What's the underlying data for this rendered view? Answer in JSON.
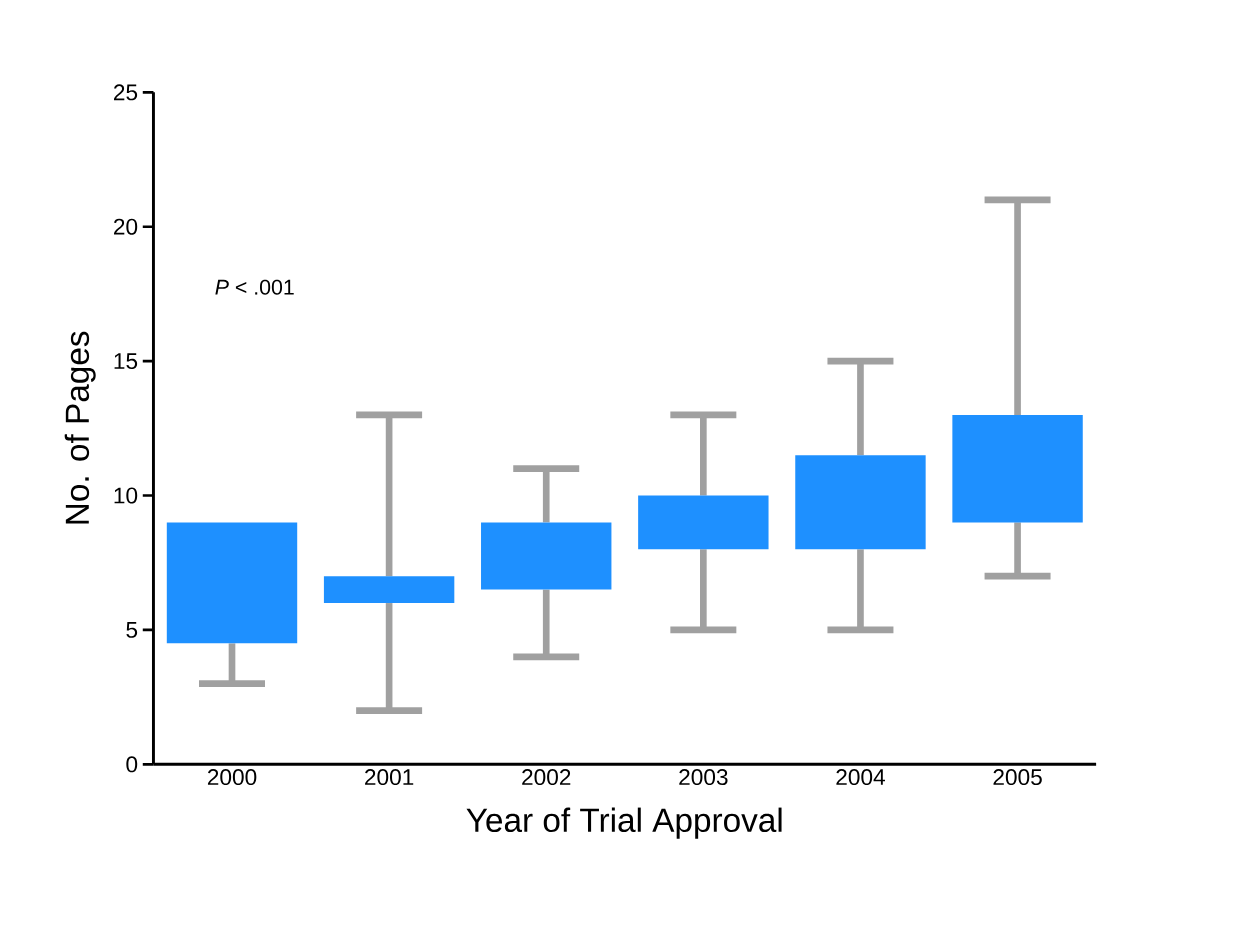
{
  "chart_data": {
    "type": "box",
    "xlabel": "Year of Trial Approval",
    "ylabel": "No. of Pages",
    "categories": [
      "2000",
      "2001",
      "2002",
      "2003",
      "2004",
      "2005"
    ],
    "ylim": [
      0,
      25
    ],
    "yticks": [
      0,
      5,
      10,
      15,
      20,
      25
    ],
    "annotations": [
      "*P* < .001"
    ],
    "series": [
      {
        "color": "#1e90ff",
        "boxes": [
          {
            "low": 3,
            "q1": 4.5,
            "q3": 9,
            "high": 9
          },
          {
            "low": 2,
            "q1": 6,
            "q3": 7,
            "high": 13
          },
          {
            "low": 4,
            "q1": 6.5,
            "q3": 9,
            "high": 11
          },
          {
            "low": 5,
            "q1": 8,
            "q3": 10,
            "high": 13
          },
          {
            "low": 5,
            "q1": 8,
            "q3": 11.5,
            "high": 15
          },
          {
            "low": 7,
            "q1": 9,
            "q3": 13,
            "high": 21
          }
        ]
      }
    ]
  }
}
